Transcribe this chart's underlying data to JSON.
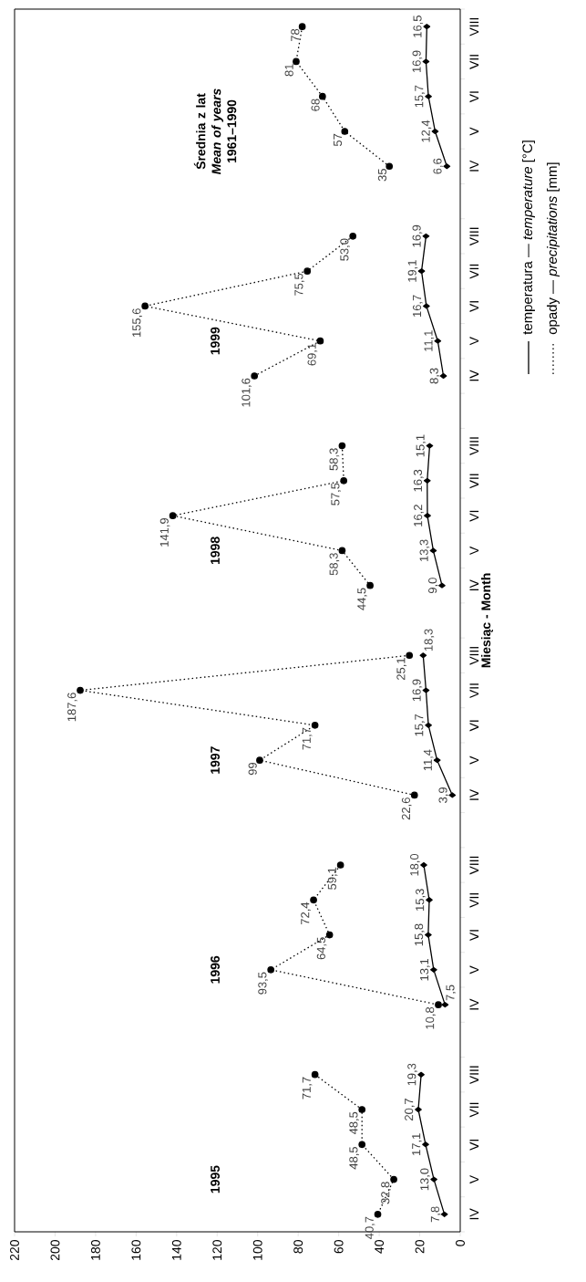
{
  "chart_data": {
    "type": "line",
    "orientation": "horizontal",
    "ylabel": "Miesiąc - Month",
    "categories": [
      "VIII",
      "VII",
      "VI",
      "V",
      "IV",
      null,
      "VIII",
      "VII",
      "VI",
      "V",
      "IV",
      null,
      "VIII",
      "VII",
      "VI",
      "V",
      "IV",
      null,
      "VIII",
      "VII",
      "VI",
      "V",
      "IV",
      null,
      "VIII",
      "VII",
      "VI",
      "V",
      "IV",
      null,
      "VIII",
      "VII",
      "VI",
      "V",
      "IV"
    ],
    "series": [
      {
        "name": "temperatura — *temperature* [°C]",
        "color": "#000000",
        "marker": "diamond",
        "line_style": "solid",
        "values": [
          16.5,
          16.9,
          15.7,
          12.4,
          6.6,
          null,
          16.9,
          19.1,
          16.7,
          11.1,
          8.3,
          null,
          15.1,
          16.3,
          16.2,
          13.3,
          9.0,
          null,
          18.3,
          16.9,
          15.7,
          11.4,
          3.9,
          null,
          18.0,
          15.3,
          15.8,
          13.1,
          7.5,
          null,
          19.3,
          20.7,
          17.1,
          13.0,
          7.8
        ],
        "value_labels": [
          "16,5",
          "16,9",
          "15,7",
          "12,4",
          "6,6",
          null,
          "16,9",
          "19,1",
          "16,7",
          "11,1",
          "8,3",
          null,
          "15,1",
          "16,3",
          "16,2",
          "13,3",
          "9,0",
          null,
          "18,3",
          "16,9",
          "15,7",
          "11,4",
          "3,9",
          null,
          "18,0",
          "15,3",
          "15,8",
          "13,1",
          "7,5",
          null,
          "19,3",
          "20,7",
          "17,1",
          "13,0",
          "7,8"
        ]
      },
      {
        "name": "opady — *precipitations* [mm]",
        "color": "#000000",
        "marker": "circle",
        "line_style": "dotted",
        "values": [
          78,
          81,
          68,
          57,
          35,
          null,
          53.0,
          75.5,
          155.6,
          69.1,
          101.6,
          null,
          58.3,
          57.5,
          141.9,
          58.3,
          44.5,
          null,
          25.1,
          187.6,
          71.7,
          99,
          22.6,
          null,
          59.1,
          72.4,
          64.5,
          93.5,
          10.8,
          null,
          71.7,
          48.5,
          48.5,
          32.8,
          40.7
        ],
        "value_labels": [
          "78",
          "81",
          "68",
          "57",
          "35",
          null,
          "53,0",
          "75,5",
          "155,6",
          "69,1",
          "101,6",
          null,
          "58,3",
          "57,5",
          "141,9",
          "58,3",
          "44,5",
          null,
          "25,1",
          "187,6",
          "71,7",
          "99",
          "22,6",
          null,
          "59,1",
          "72,4",
          "64,5",
          "93,5",
          "10,8",
          null,
          "71,7",
          "48,5",
          "48,5",
          "32,8",
          "40,7"
        ]
      }
    ],
    "xlim": [
      220,
      0
    ],
    "xticks": [
      220,
      200,
      180,
      160,
      140,
      120,
      100,
      80,
      60,
      40,
      20,
      0
    ],
    "legend": "top right",
    "annotations": [
      "Średnia z lat *Mean of years* 1961–1990",
      "1999",
      "1998",
      "1997",
      "1996",
      "1995"
    ]
  }
}
